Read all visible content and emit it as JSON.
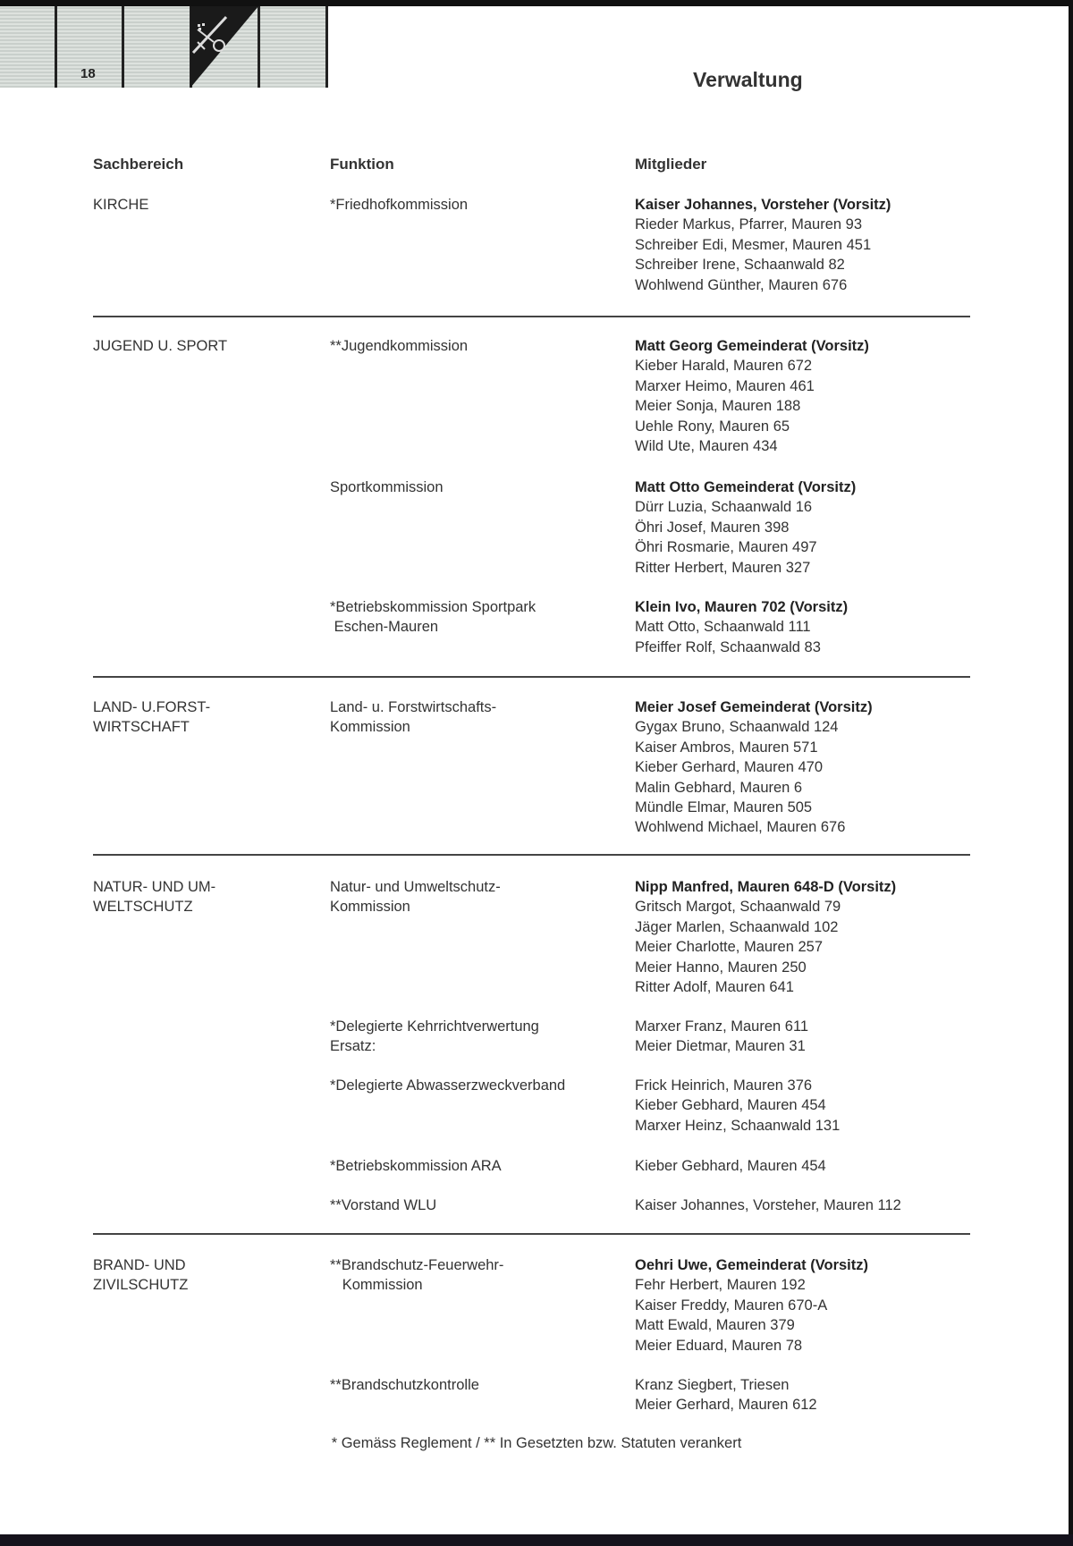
{
  "header": {
    "page_number": "18",
    "title": "Verwaltung"
  },
  "columns": {
    "area": "Sachbereich",
    "function": "Funktion",
    "members": "Mitglieder"
  },
  "sections": [
    {
      "area": [
        "KIRCHE"
      ],
      "groups": [
        {
          "function": [
            "*Friedhofkommission"
          ],
          "chair": "Kaiser Johannes, Vorsteher (Vorsitz)",
          "members": [
            "Rieder Markus, Pfarrer, Mauren 93",
            "Schreiber Edi, Mesmer, Mauren 451",
            "Schreiber Irene, Schaanwald 82",
            "Wohlwend Günther, Mauren 676"
          ]
        }
      ]
    },
    {
      "area": [
        "JUGEND U. SPORT"
      ],
      "groups": [
        {
          "function": [
            "**Jugendkommission"
          ],
          "chair": "Matt Georg Gemeinderat (Vorsitz)",
          "members": [
            "Kieber Harald, Mauren 672",
            "Marxer Heimo, Mauren 461",
            "Meier Sonja, Mauren 188",
            "Uehle Rony, Mauren 65",
            "Wild Ute, Mauren 434"
          ]
        },
        {
          "function": [
            "Sportkommission"
          ],
          "chair": "Matt Otto Gemeinderat (Vorsitz)",
          "members": [
            "Dürr Luzia, Schaanwald 16",
            "Öhri Josef, Mauren 398",
            "Öhri Rosmarie, Mauren 497",
            "Ritter Herbert, Mauren 327"
          ]
        },
        {
          "function": [
            "*Betriebskommission Sportpark",
            " Eschen-Mauren"
          ],
          "chair": "Klein Ivo, Mauren 702 (Vorsitz)",
          "members": [
            "Matt Otto, Schaanwald 111",
            "Pfeiffer Rolf, Schaanwald 83"
          ]
        }
      ]
    },
    {
      "area": [
        "LAND- U.FORST-",
        "WIRTSCHAFT"
      ],
      "groups": [
        {
          "function": [
            "Land- u. Forstwirtschafts-",
            "Kommission"
          ],
          "chair": "Meier Josef Gemeinderat (Vorsitz)",
          "members": [
            "Gygax Bruno, Schaanwald 124",
            "Kaiser Ambros, Mauren 571",
            "Kieber Gerhard, Mauren 470",
            "Malin Gebhard, Mauren 6",
            "Mündle Elmar, Mauren 505",
            "Wohlwend Michael, Mauren 676"
          ]
        }
      ]
    },
    {
      "area": [
        "NATUR- UND UM-",
        "WELTSCHUTZ"
      ],
      "groups": [
        {
          "function": [
            "Natur- und Umweltschutz-",
            "Kommission"
          ],
          "chair": "Nipp Manfred, Mauren 648-D (Vorsitz)",
          "members": [
            "Gritsch Margot, Schaanwald 79",
            "Jäger Marlen, Schaanwald 102",
            "Meier Charlotte, Mauren 257",
            "Meier Hanno, Mauren 250",
            "Ritter Adolf, Mauren 641"
          ]
        },
        {
          "function": [
            "*Delegierte Kehrrichtverwertung",
            "Ersatz:"
          ],
          "chair": "",
          "members": [
            "Marxer Franz, Mauren 611",
            "Meier Dietmar, Mauren 31"
          ]
        },
        {
          "function": [
            "*Delegierte Abwasserzweckverband"
          ],
          "chair": "",
          "members": [
            "Frick Heinrich, Mauren 376",
            "Kieber Gebhard, Mauren 454",
            "Marxer Heinz, Schaanwald 131"
          ]
        },
        {
          "function": [
            "*Betriebskommission ARA"
          ],
          "chair": "",
          "members": [
            "Kieber Gebhard, Mauren 454"
          ]
        },
        {
          "function": [
            "**Vorstand WLU"
          ],
          "chair": "",
          "members": [
            "Kaiser Johannes, Vorsteher, Mauren 112"
          ]
        }
      ]
    },
    {
      "area": [
        "BRAND- UND",
        "ZIVILSCHUTZ"
      ],
      "groups": [
        {
          "function": [
            "**Brandschutz-Feuerwehr-",
            "   Kommission"
          ],
          "chair": "Oehri Uwe, Gemeinderat (Vorsitz)",
          "members": [
            "Fehr Herbert, Mauren 192",
            "Kaiser Freddy, Mauren 670-A",
            "Matt Ewald, Mauren 379",
            "Meier Eduard, Mauren 78"
          ]
        },
        {
          "function": [
            "**Brandschutzkontrolle"
          ],
          "chair": "",
          "members": [
            "Kranz Siegbert, Triesen",
            "Meier Gerhard, Mauren 612"
          ]
        }
      ]
    }
  ],
  "footnote": "* Gemäss Reglement / ** In Gesetzten bzw. Statuten verankert"
}
